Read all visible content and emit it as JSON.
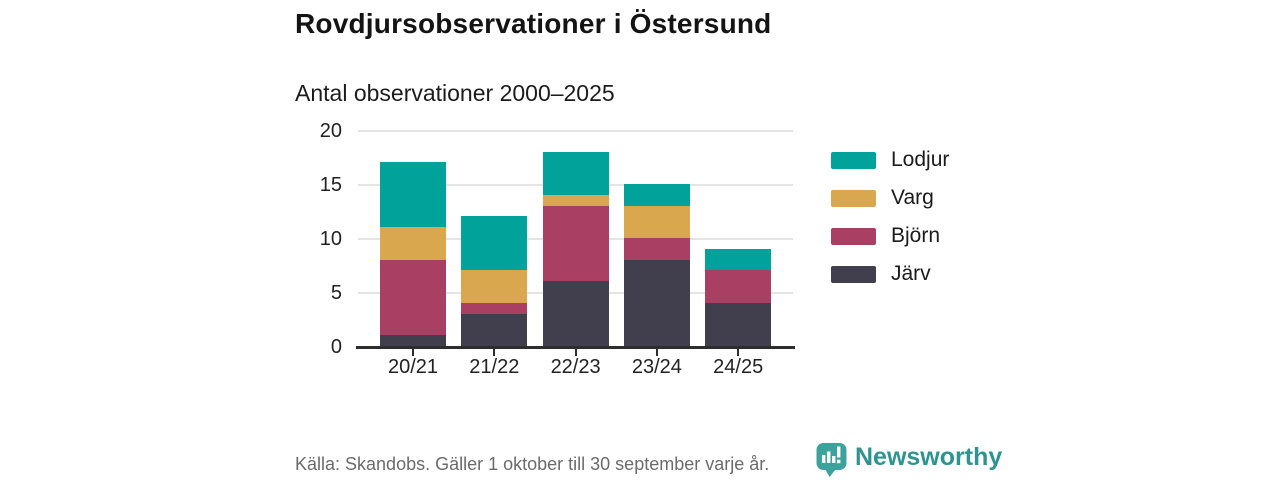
{
  "chart_data": {
    "type": "bar",
    "stacked": true,
    "title": "Rovdjursobservationer i Östersund",
    "subtitle": "Antal observationer 2000–2025",
    "categories": [
      "20/21",
      "21/22",
      "22/23",
      "23/24",
      "24/25"
    ],
    "series": [
      {
        "name": "Järv",
        "color": "#413E4E",
        "values": [
          1,
          3,
          6,
          8,
          4
        ]
      },
      {
        "name": "Björn",
        "color": "#A93F62",
        "values": [
          7,
          1,
          7,
          2,
          3
        ]
      },
      {
        "name": "Varg",
        "color": "#D9A84E",
        "values": [
          3,
          3,
          1,
          3,
          0
        ]
      },
      {
        "name": "Lodjur",
        "color": "#00A29A",
        "values": [
          6,
          5,
          4,
          2,
          2
        ]
      }
    ],
    "stack_totals": [
      17,
      12,
      18,
      15,
      9
    ],
    "xlabel": "",
    "ylabel": "",
    "ylim": [
      0,
      20
    ],
    "yticks": [
      0,
      5,
      10,
      15,
      20
    ],
    "grid": "horizontal",
    "legend_position": "right",
    "legend_order": [
      "Lodjur",
      "Varg",
      "Björn",
      "Järv"
    ]
  },
  "footer": {
    "source": "Källa: Skandobs. Gäller 1 oktober till 30 september varje år.",
    "brand": "Newsworthy",
    "brand_icon": "bar-chart-speech-bubble-icon"
  },
  "colors": {
    "lodjur_teal": "#00A29A",
    "varg_gold": "#D9A84E",
    "bjorn_crimson": "#A93F62",
    "jarv_slate": "#413E4E",
    "brand_teal": "#2F9490",
    "brand_icon_teal": "#3BA39C",
    "axis": "#2E2E2E",
    "gridline": "#E4E4E4",
    "source_text": "#6B6B6B"
  }
}
